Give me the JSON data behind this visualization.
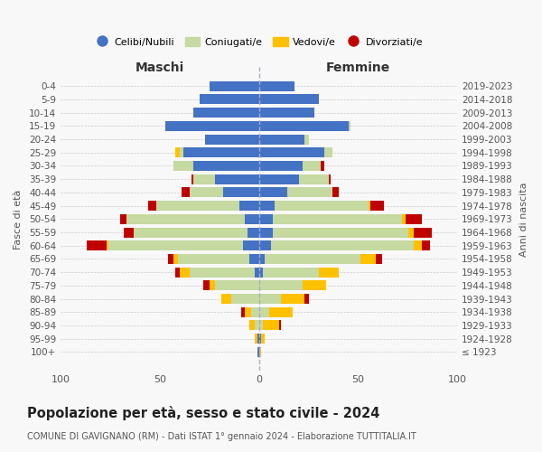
{
  "age_groups": [
    "100+",
    "95-99",
    "90-94",
    "85-89",
    "80-84",
    "75-79",
    "70-74",
    "65-69",
    "60-64",
    "55-59",
    "50-54",
    "45-49",
    "40-44",
    "35-39",
    "30-34",
    "25-29",
    "20-24",
    "15-19",
    "10-14",
    "5-9",
    "0-4"
  ],
  "birth_years": [
    "≤ 1923",
    "1924-1928",
    "1929-1933",
    "1934-1938",
    "1939-1943",
    "1944-1948",
    "1949-1953",
    "1954-1958",
    "1959-1963",
    "1964-1968",
    "1969-1973",
    "1974-1978",
    "1979-1983",
    "1984-1988",
    "1989-1993",
    "1994-1998",
    "1999-2003",
    "2004-2008",
    "2009-2013",
    "2014-2018",
    "2019-2023"
  ],
  "males": {
    "celibi": [
      1,
      1,
      0,
      0,
      0,
      0,
      2,
      5,
      8,
      6,
      7,
      10,
      18,
      22,
      33,
      38,
      27,
      47,
      33,
      30,
      25
    ],
    "coniugati": [
      0,
      0,
      2,
      4,
      14,
      22,
      33,
      36,
      68,
      57,
      60,
      42,
      17,
      11,
      10,
      2,
      0,
      0,
      0,
      0,
      0
    ],
    "vedovi": [
      0,
      1,
      3,
      3,
      5,
      3,
      5,
      2,
      1,
      0,
      0,
      0,
      0,
      0,
      0,
      2,
      0,
      0,
      0,
      0,
      0
    ],
    "divorziati": [
      0,
      0,
      0,
      2,
      0,
      3,
      2,
      3,
      10,
      5,
      3,
      4,
      4,
      1,
      0,
      0,
      0,
      0,
      0,
      0,
      0
    ]
  },
  "females": {
    "nubili": [
      0,
      1,
      0,
      0,
      0,
      0,
      2,
      3,
      6,
      7,
      7,
      8,
      14,
      20,
      22,
      33,
      23,
      45,
      28,
      30,
      18
    ],
    "coniugate": [
      0,
      0,
      2,
      5,
      11,
      22,
      28,
      48,
      72,
      68,
      65,
      47,
      23,
      15,
      9,
      4,
      2,
      1,
      0,
      0,
      0
    ],
    "vedove": [
      1,
      2,
      8,
      12,
      12,
      12,
      10,
      8,
      4,
      3,
      2,
      1,
      0,
      0,
      0,
      0,
      0,
      0,
      0,
      0,
      0
    ],
    "divorziate": [
      0,
      0,
      1,
      0,
      2,
      0,
      0,
      3,
      4,
      9,
      8,
      7,
      3,
      1,
      2,
      0,
      0,
      0,
      0,
      0,
      0
    ]
  },
  "colors": {
    "celibi": "#4472c4",
    "coniugati": "#c5d9a0",
    "vedovi": "#ffc000",
    "divorziati": "#c00000"
  },
  "xlim": 100,
  "title": "Popolazione per età, sesso e stato civile - 2024",
  "subtitle": "COMUNE DI GAVIGNANO (RM) - Dati ISTAT 1° gennaio 2024 - Elaborazione TUTTITALIA.IT",
  "legend_labels": [
    "Celibi/Nubili",
    "Coniugati/e",
    "Vedovi/e",
    "Divorziati/e"
  ],
  "maschi_label": "Maschi",
  "femmine_label": "Femmine",
  "fasce_label": "Fasce di età",
  "anni_label": "Anni di nascita",
  "bg_color": "#f8f8f8"
}
